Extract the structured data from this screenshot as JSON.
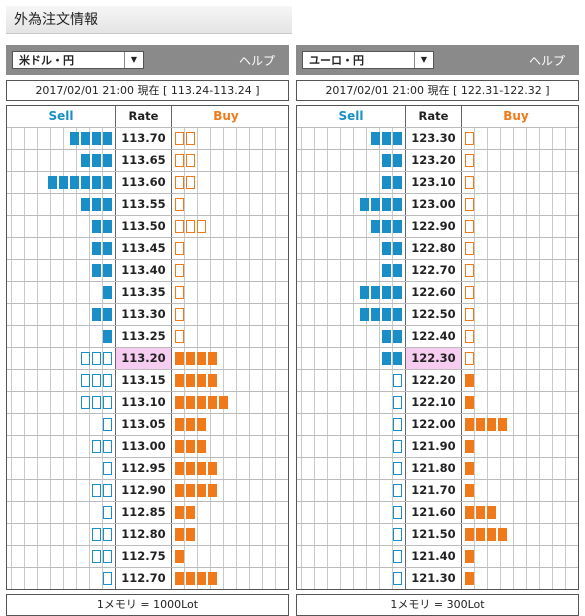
{
  "page_title": "外為注文情報",
  "colors": {
    "sell": "#1a8fc7",
    "buy": "#f07a1a",
    "current_rate_bg": "#f6cdf0",
    "header_bg": "#8a8a8a"
  },
  "headers": {
    "sell": "Sell",
    "rate": "Rate",
    "buy": "Buy"
  },
  "panels": [
    {
      "pair": "米ドル・円",
      "help": "ヘルプ",
      "datetime": "2017/02/01  21:00 現在 [ 113.24-113.24 ]",
      "footer": "1メモリ = 1000Lot",
      "current_rate": "113.20",
      "rows": [
        {
          "rate": "113.70",
          "sell": 4,
          "sell_type": "filled",
          "buy": 2,
          "buy_type": "outline"
        },
        {
          "rate": "113.65",
          "sell": 3,
          "sell_type": "filled",
          "buy": 2,
          "buy_type": "outline"
        },
        {
          "rate": "113.60",
          "sell": 6,
          "sell_type": "filled",
          "buy": 2,
          "buy_type": "outline"
        },
        {
          "rate": "113.55",
          "sell": 3,
          "sell_type": "filled",
          "buy": 1,
          "buy_type": "outline"
        },
        {
          "rate": "113.50",
          "sell": 2,
          "sell_type": "filled",
          "buy": 3,
          "buy_type": "outline"
        },
        {
          "rate": "113.45",
          "sell": 2,
          "sell_type": "filled",
          "buy": 1,
          "buy_type": "outline"
        },
        {
          "rate": "113.40",
          "sell": 2,
          "sell_type": "filled",
          "buy": 1,
          "buy_type": "outline"
        },
        {
          "rate": "113.35",
          "sell": 1,
          "sell_type": "filled",
          "buy": 1,
          "buy_type": "outline"
        },
        {
          "rate": "113.30",
          "sell": 2,
          "sell_type": "filled",
          "buy": 1,
          "buy_type": "outline"
        },
        {
          "rate": "113.25",
          "sell": 1,
          "sell_type": "filled",
          "buy": 1,
          "buy_type": "outline"
        },
        {
          "rate": "113.20",
          "sell": 3,
          "sell_type": "outline",
          "buy": 4,
          "buy_type": "filled"
        },
        {
          "rate": "113.15",
          "sell": 3,
          "sell_type": "outline",
          "buy": 4,
          "buy_type": "filled"
        },
        {
          "rate": "113.10",
          "sell": 3,
          "sell_type": "outline",
          "buy": 5,
          "buy_type": "filled"
        },
        {
          "rate": "113.05",
          "sell": 1,
          "sell_type": "outline",
          "buy": 3,
          "buy_type": "filled"
        },
        {
          "rate": "113.00",
          "sell": 2,
          "sell_type": "outline",
          "buy": 3,
          "buy_type": "filled"
        },
        {
          "rate": "112.95",
          "sell": 1,
          "sell_type": "outline",
          "buy": 4,
          "buy_type": "filled"
        },
        {
          "rate": "112.90",
          "sell": 2,
          "sell_type": "outline",
          "buy": 4,
          "buy_type": "filled"
        },
        {
          "rate": "112.85",
          "sell": 1,
          "sell_type": "outline",
          "buy": 2,
          "buy_type": "filled"
        },
        {
          "rate": "112.80",
          "sell": 2,
          "sell_type": "outline",
          "buy": 2,
          "buy_type": "filled"
        },
        {
          "rate": "112.75",
          "sell": 2,
          "sell_type": "outline",
          "buy": 1,
          "buy_type": "filled"
        },
        {
          "rate": "112.70",
          "sell": 1,
          "sell_type": "outline",
          "buy": 4,
          "buy_type": "filled"
        }
      ]
    },
    {
      "pair": "ユーロ・円",
      "help": "ヘルプ",
      "datetime": "2017/02/01  21:00 現在 [ 122.31-122.32 ]",
      "footer": "1メモリ = 300Lot",
      "current_rate": "122.30",
      "rows": [
        {
          "rate": "123.30",
          "sell": 3,
          "sell_type": "filled",
          "buy": 1,
          "buy_type": "outline"
        },
        {
          "rate": "123.20",
          "sell": 2,
          "sell_type": "filled",
          "buy": 1,
          "buy_type": "outline"
        },
        {
          "rate": "123.10",
          "sell": 2,
          "sell_type": "filled",
          "buy": 1,
          "buy_type": "outline"
        },
        {
          "rate": "123.00",
          "sell": 4,
          "sell_type": "filled",
          "buy": 1,
          "buy_type": "outline"
        },
        {
          "rate": "122.90",
          "sell": 3,
          "sell_type": "filled",
          "buy": 1,
          "buy_type": "outline"
        },
        {
          "rate": "122.80",
          "sell": 2,
          "sell_type": "filled",
          "buy": 1,
          "buy_type": "outline"
        },
        {
          "rate": "122.70",
          "sell": 2,
          "sell_type": "filled",
          "buy": 1,
          "buy_type": "outline"
        },
        {
          "rate": "122.60",
          "sell": 4,
          "sell_type": "filled",
          "buy": 1,
          "buy_type": "outline"
        },
        {
          "rate": "122.50",
          "sell": 4,
          "sell_type": "filled",
          "buy": 1,
          "buy_type": "outline"
        },
        {
          "rate": "122.40",
          "sell": 2,
          "sell_type": "filled",
          "buy": 1,
          "buy_type": "outline"
        },
        {
          "rate": "122.30",
          "sell": 2,
          "sell_type": "filled",
          "buy": 1,
          "buy_type": "outline"
        },
        {
          "rate": "122.20",
          "sell": 1,
          "sell_type": "outline",
          "buy": 1,
          "buy_type": "filled"
        },
        {
          "rate": "122.10",
          "sell": 1,
          "sell_type": "outline",
          "buy": 1,
          "buy_type": "filled"
        },
        {
          "rate": "122.00",
          "sell": 1,
          "sell_type": "outline",
          "buy": 4,
          "buy_type": "filled"
        },
        {
          "rate": "121.90",
          "sell": 1,
          "sell_type": "outline",
          "buy": 1,
          "buy_type": "filled"
        },
        {
          "rate": "121.80",
          "sell": 1,
          "sell_type": "outline",
          "buy": 1,
          "buy_type": "filled"
        },
        {
          "rate": "121.70",
          "sell": 1,
          "sell_type": "outline",
          "buy": 1,
          "buy_type": "filled"
        },
        {
          "rate": "121.60",
          "sell": 1,
          "sell_type": "outline",
          "buy": 3,
          "buy_type": "filled"
        },
        {
          "rate": "121.50",
          "sell": 1,
          "sell_type": "outline",
          "buy": 4,
          "buy_type": "filled"
        },
        {
          "rate": "121.40",
          "sell": 1,
          "sell_type": "outline",
          "buy": 1,
          "buy_type": "filled"
        },
        {
          "rate": "121.30",
          "sell": 1,
          "sell_type": "outline",
          "buy": 1,
          "buy_type": "filled"
        }
      ]
    }
  ]
}
